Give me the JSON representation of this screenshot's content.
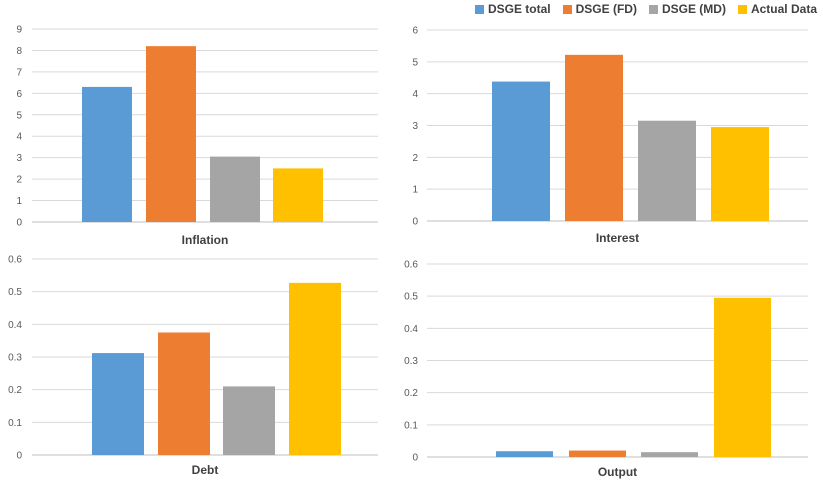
{
  "chart_data": [
    {
      "type": "bar",
      "title": "Inflation",
      "categories": [
        "DSGE total",
        "DSGE (FD)",
        "DSGE (MD)",
        "Actual Data"
      ],
      "values": [
        6.3,
        8.2,
        3.05,
        2.5
      ],
      "ylim": [
        0,
        9
      ],
      "yticks": [
        0,
        1,
        2,
        3,
        4,
        5,
        6,
        7,
        8,
        9
      ],
      "grid": true
    },
    {
      "type": "bar",
      "title": "Interest",
      "categories": [
        "DSGE total",
        "DSGE (FD)",
        "DSGE (MD)",
        "Actual Data"
      ],
      "values": [
        4.38,
        5.22,
        3.15,
        2.95
      ],
      "ylim": [
        0,
        6
      ],
      "yticks": [
        0,
        1,
        2,
        3,
        4,
        5,
        6
      ],
      "grid": true
    },
    {
      "type": "bar",
      "title": "Debt",
      "categories": [
        "DSGE total",
        "DSGE (FD)",
        "DSGE (MD)",
        "Actual Data"
      ],
      "values": [
        0.312,
        0.375,
        0.21,
        0.527
      ],
      "ylim": [
        0,
        0.6
      ],
      "yticks": [
        0,
        0.1,
        0.2,
        0.3,
        0.4,
        0.5,
        0.6
      ],
      "grid": true
    },
    {
      "type": "bar",
      "title": "Output",
      "categories": [
        "DSGE total",
        "DSGE (FD)",
        "DSGE (MD)",
        "Actual Data"
      ],
      "values": [
        0.018,
        0.02,
        0.015,
        0.495
      ],
      "ylim": [
        0,
        0.6
      ],
      "yticks": [
        0,
        0.1,
        0.2,
        0.3,
        0.4,
        0.5,
        0.6
      ],
      "grid": true
    }
  ],
  "legend": {
    "placement": "top-right",
    "items": [
      {
        "label": "DSGE total",
        "color": "#5b9bd5"
      },
      {
        "label": "DSGE (FD)",
        "color": "#ed7d31"
      },
      {
        "label": "DSGE (MD)",
        "color": "#a5a5a5"
      },
      {
        "label": "Actual Data",
        "color": "#ffc000"
      }
    ]
  }
}
